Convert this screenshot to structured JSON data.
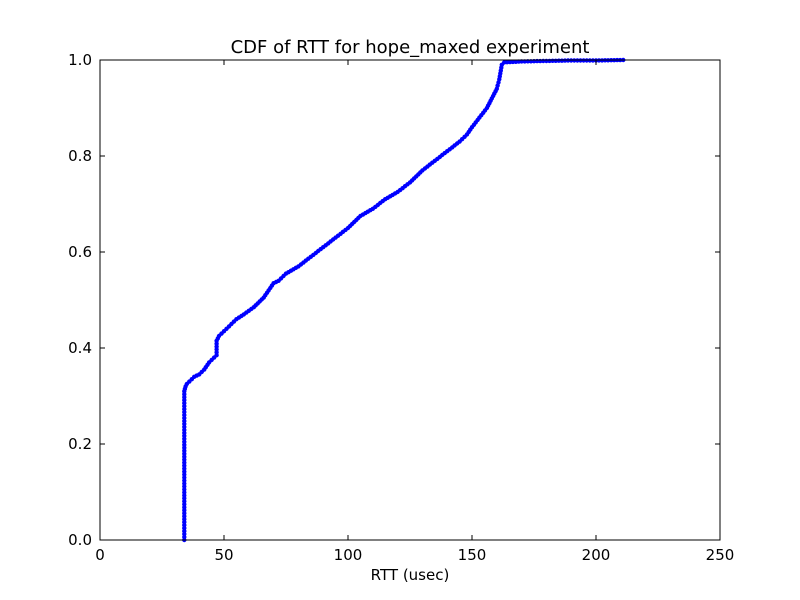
{
  "chart_data": {
    "type": "line",
    "title": "CDF of RTT for hope_maxed experiment",
    "xlabel": "RTT (usec)",
    "ylabel": "",
    "xlim": [
      0,
      250
    ],
    "ylim": [
      0.0,
      1.0
    ],
    "x_ticks": [
      "0",
      "50",
      "100",
      "150",
      "200",
      "250"
    ],
    "y_ticks": [
      "0.0",
      "0.2",
      "0.4",
      "0.6",
      "0.8",
      "1.0"
    ],
    "grid": false,
    "legend": "none",
    "series": [
      {
        "color": "#0000ff",
        "marker": "dot",
        "x": [
          34,
          34,
          34.5,
          35,
          36,
          38,
          40,
          42,
          44,
          46,
          47,
          47,
          48,
          50,
          52,
          55,
          58,
          62,
          66,
          68,
          70,
          72,
          75,
          80,
          85,
          90,
          95,
          100,
          105,
          110,
          115,
          120,
          125,
          130,
          135,
          140,
          145,
          148,
          150,
          153,
          156,
          158,
          160,
          161,
          162,
          163,
          170,
          180,
          190,
          200,
          211
        ],
        "y": [
          0.0,
          0.31,
          0.32,
          0.325,
          0.33,
          0.34,
          0.345,
          0.355,
          0.37,
          0.38,
          0.385,
          0.415,
          0.425,
          0.435,
          0.445,
          0.46,
          0.47,
          0.485,
          0.505,
          0.52,
          0.535,
          0.54,
          0.555,
          0.57,
          0.59,
          0.61,
          0.63,
          0.65,
          0.675,
          0.69,
          0.71,
          0.725,
          0.745,
          0.77,
          0.79,
          0.81,
          0.83,
          0.845,
          0.86,
          0.88,
          0.9,
          0.92,
          0.94,
          0.96,
          0.99,
          0.995,
          0.997,
          0.998,
          0.999,
          0.999,
          1.0
        ]
      }
    ]
  }
}
